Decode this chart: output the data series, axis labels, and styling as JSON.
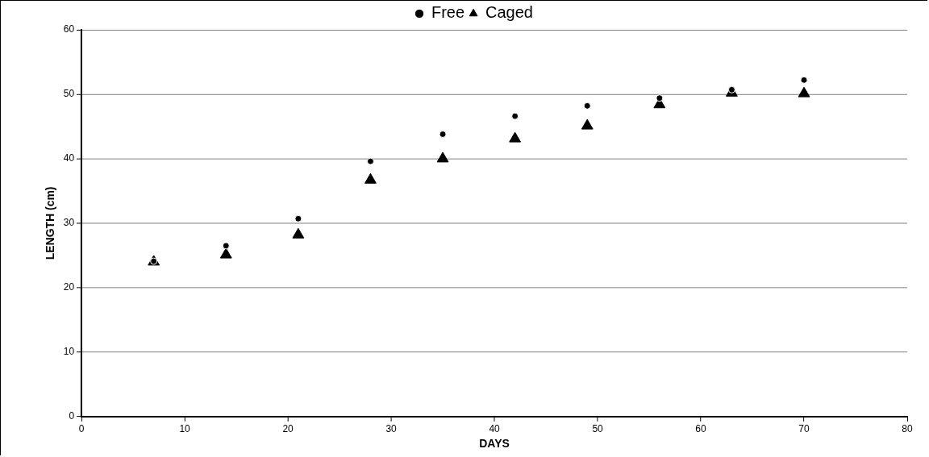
{
  "chart_data": {
    "type": "scatter",
    "xlabel": "DAYS",
    "ylabel": "LENGTH (cm)",
    "xlim": [
      0,
      80
    ],
    "xticks": [
      0,
      10,
      20,
      30,
      40,
      50,
      60,
      70,
      80
    ],
    "ylim": [
      0,
      60
    ],
    "yticks": [
      0,
      10,
      20,
      30,
      40,
      50,
      60
    ],
    "grid": "y",
    "legend": "top",
    "series": [
      {
        "name": "Free",
        "color": "#000000",
        "marker": "circle",
        "x": [
          7,
          14,
          21,
          28,
          35,
          42,
          49,
          56,
          63,
          70
        ],
        "values": [
          24.1,
          26.5,
          30.7,
          39.6,
          43.8,
          46.6,
          48.2,
          49.4,
          50.7,
          52.2
        ]
      },
      {
        "name": "Caged",
        "color": "#000000",
        "marker": "triangle",
        "x": [
          7,
          14,
          21,
          28,
          35,
          42,
          49,
          56,
          63,
          70
        ],
        "values": [
          24.0,
          25.1,
          28.2,
          36.7,
          40.0,
          43.1,
          45.1,
          48.4,
          50.2,
          50.1
        ]
      }
    ]
  }
}
